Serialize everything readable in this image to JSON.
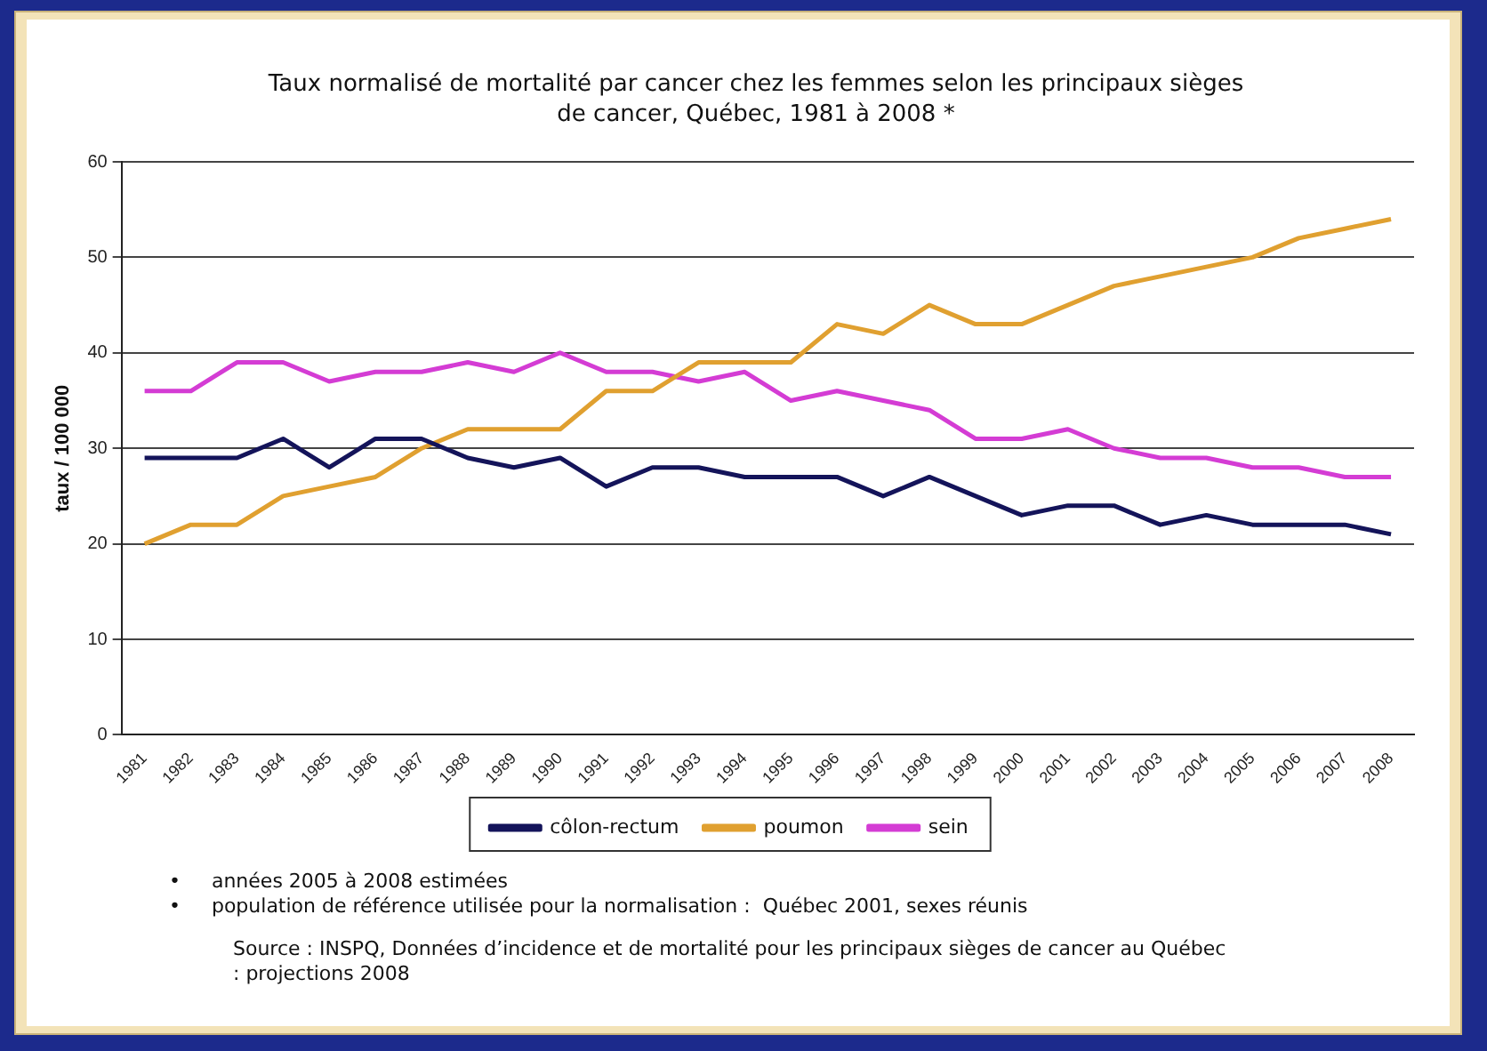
{
  "chart_data": {
    "type": "line",
    "title": "Taux normalisé de mortalité par cancer chez les femmes selon les principaux sièges de cancer, Québec, 1981 à 2008 *",
    "ylabel": "taux / 100 000",
    "categories": [
      "1981",
      "1982",
      "1983",
      "1984",
      "1985",
      "1986",
      "1987",
      "1988",
      "1989",
      "1990",
      "1991",
      "1992",
      "1993",
      "1994",
      "1995",
      "1996",
      "1997",
      "1998",
      "1999",
      "2000",
      "2001",
      "2002",
      "2003",
      "2004",
      "2005",
      "2006",
      "2007",
      "2008"
    ],
    "series": [
      {
        "name": "côlon-rectum",
        "color": "#14145a",
        "values": [
          29,
          29,
          29,
          31,
          28,
          31,
          31,
          29,
          28,
          29,
          26,
          28,
          28,
          27,
          27,
          27,
          25,
          27,
          25,
          23,
          24,
          24,
          22,
          23,
          22,
          22,
          22,
          21
        ]
      },
      {
        "name": "poumon",
        "color": "#e0a030",
        "values": [
          20,
          22,
          22,
          25,
          26,
          27,
          30,
          32,
          32,
          32,
          36,
          36,
          39,
          39,
          39,
          43,
          42,
          45,
          43,
          43,
          45,
          47,
          48,
          49,
          50,
          52,
          53,
          54
        ]
      },
      {
        "name": "sein",
        "color": "#d43cd4",
        "values": [
          36,
          36,
          39,
          39,
          37,
          38,
          38,
          39,
          38,
          40,
          38,
          38,
          37,
          38,
          35,
          36,
          35,
          34,
          31,
          31,
          32,
          30,
          29,
          29,
          28,
          28,
          27,
          27
        ]
      }
    ],
    "ylim": [
      0,
      60
    ],
    "yticks": [
      0,
      10,
      20,
      30,
      40,
      50,
      60
    ],
    "grid": "y",
    "legend": "bottom",
    "marker": "none",
    "line_style": "solid",
    "annotations": [
      "•     années 2005 à 2008 estimées",
      "•     population de référence utilisée pour la normalisation :  Québec 2001, sexes réunis",
      "Source : INSPQ, Données d’incidence et de mortalité pour les principaux sièges de cancer au Québec : projections 2008"
    ]
  }
}
